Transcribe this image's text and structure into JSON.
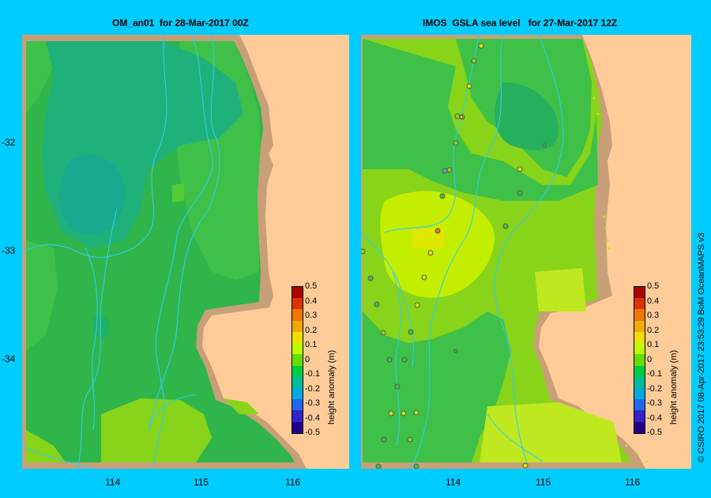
{
  "panels": [
    {
      "title": "OM_an01  for 28-Mar-2017 00Z"
    },
    {
      "title": "IMOS  GSLA sea level   for 27-Mar-2017 12Z"
    }
  ],
  "axes": {
    "lat_labels": [
      "-32",
      "-33",
      "-34"
    ],
    "lon_labels": [
      "114",
      "115",
      "116"
    ]
  },
  "colorbar": {
    "title": "height anomaly  (m)",
    "ticks": [
      "0.5",
      "0.4",
      "0.3",
      "0.2",
      "0.1",
      "0",
      "-0.1",
      "-0.2",
      "-0.3",
      "-0.4",
      "-0.5"
    ],
    "colors": [
      "#aa0000",
      "#dd3300",
      "#ee7700",
      "#eeaa00",
      "#eedd00",
      "#bbff00",
      "#66dd00",
      "#00cc44",
      "#00bb99",
      "#00aadd",
      "#2266ee",
      "#3322cc",
      "#220088"
    ]
  },
  "credit": "© CSIRO 2017    08-Apr-2017 23:53:29 BoM OceanMAPS v3",
  "colors": {
    "land": "#ffcc99",
    "coast_shelf": "#c8a078",
    "background": "#00ccff"
  }
}
